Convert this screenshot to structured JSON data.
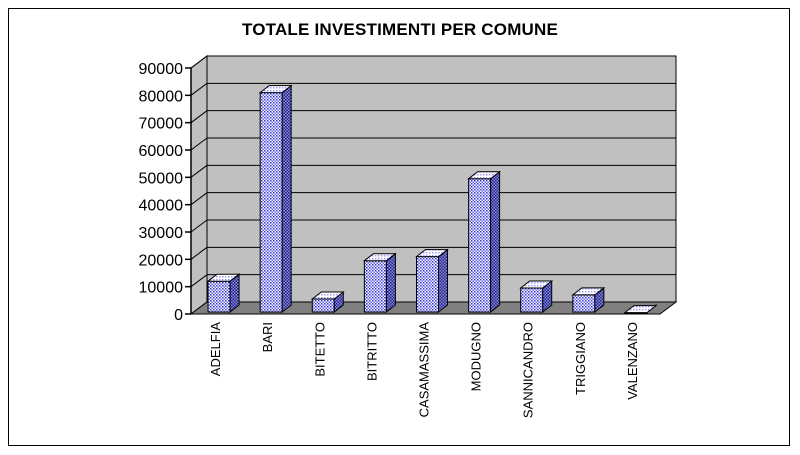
{
  "chart_data": {
    "type": "bar",
    "title": "TOTALE INVESTIMENTI PER COMUNE",
    "categories": [
      "ADELFIA",
      "BARI",
      "BITETTO",
      "BITRITTO",
      "CASAMASSIMA",
      "MODUGNO",
      "SANNICANDRO",
      "TRIGGIANO",
      "VALENZANO"
    ],
    "values": [
      12000,
      81000,
      5500,
      19500,
      21000,
      49500,
      9500,
      7000,
      500
    ],
    "ylim": [
      0,
      90000
    ],
    "yticks": [
      "0",
      "10000",
      "20000",
      "30000",
      "40000",
      "50000",
      "60000",
      "70000",
      "80000",
      "90000"
    ],
    "grid": true,
    "legend": "none",
    "colors": {
      "bar": "#9999ff",
      "bar_side": "#333399",
      "bar_top": "#ccccff",
      "wall": "#c0c0c0",
      "floor": "#808080"
    }
  }
}
